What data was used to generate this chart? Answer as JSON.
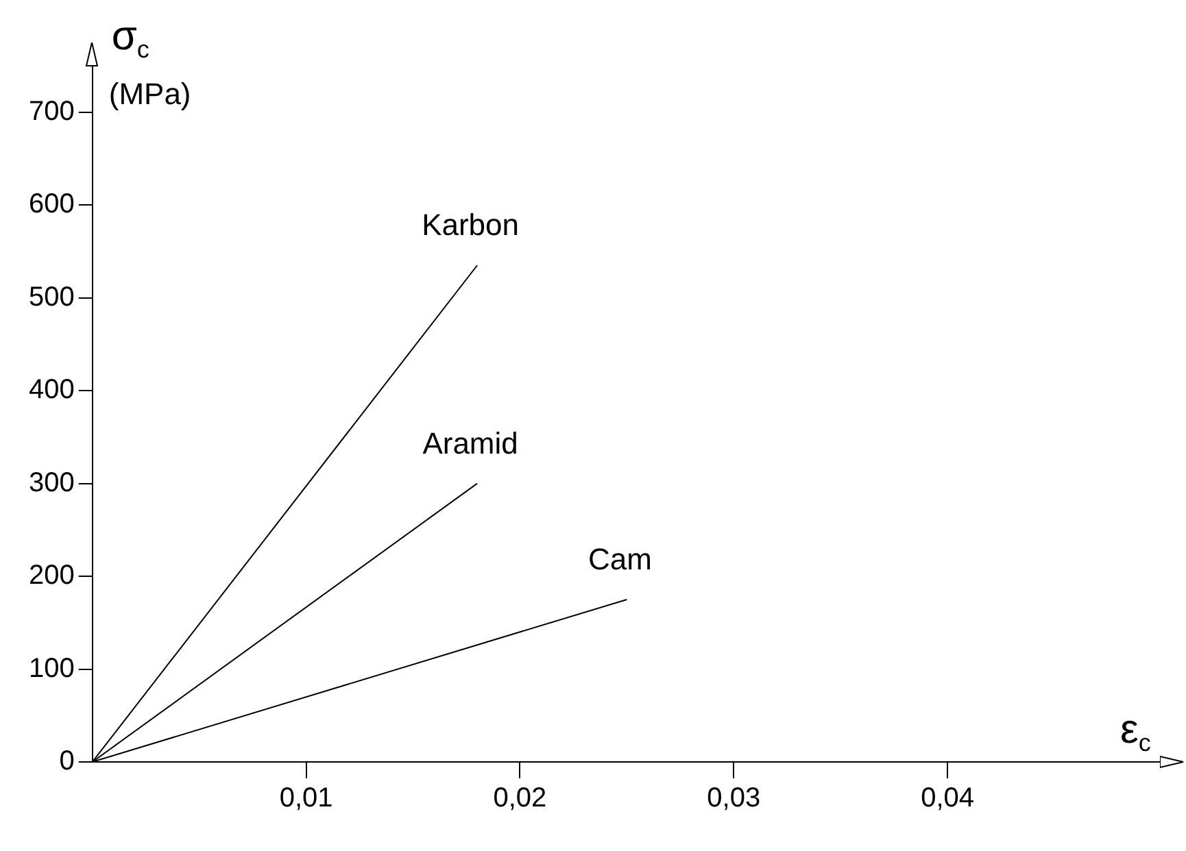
{
  "chart_data": {
    "type": "line",
    "xlabel": "ε$_{c}$",
    "ylabel": "σ$_{c}$ (MPa)",
    "x": [
      0,
      0.018
    ],
    "series": [
      {
        "name": "Karbon",
        "color": "#000000",
        "values": [
          0,
          535
        ]
      },
      {
        "name": "Aramid",
        "color": "#000000",
        "values": [
          0,
          300
        ]
      },
      {
        "name": "Cam",
        "color": "#000000",
        "x": [
          0,
          0.025
        ],
        "values": [
          0,
          175
        ]
      }
    ],
    "xlim": [
      0,
      0.05
    ],
    "ylim": [
      0,
      750
    ],
    "xticks": [
      {
        "value": 0.01,
        "label": "0,01"
      },
      {
        "value": 0.02,
        "label": "0,02"
      },
      {
        "value": 0.03,
        "label": "0,03"
      },
      {
        "value": 0.04,
        "label": "0,04"
      }
    ],
    "yticks": [
      0,
      100,
      200,
      300,
      400,
      500,
      600,
      700
    ],
    "grid": false,
    "legend": false,
    "marker": "none",
    "line_style": "solid"
  }
}
